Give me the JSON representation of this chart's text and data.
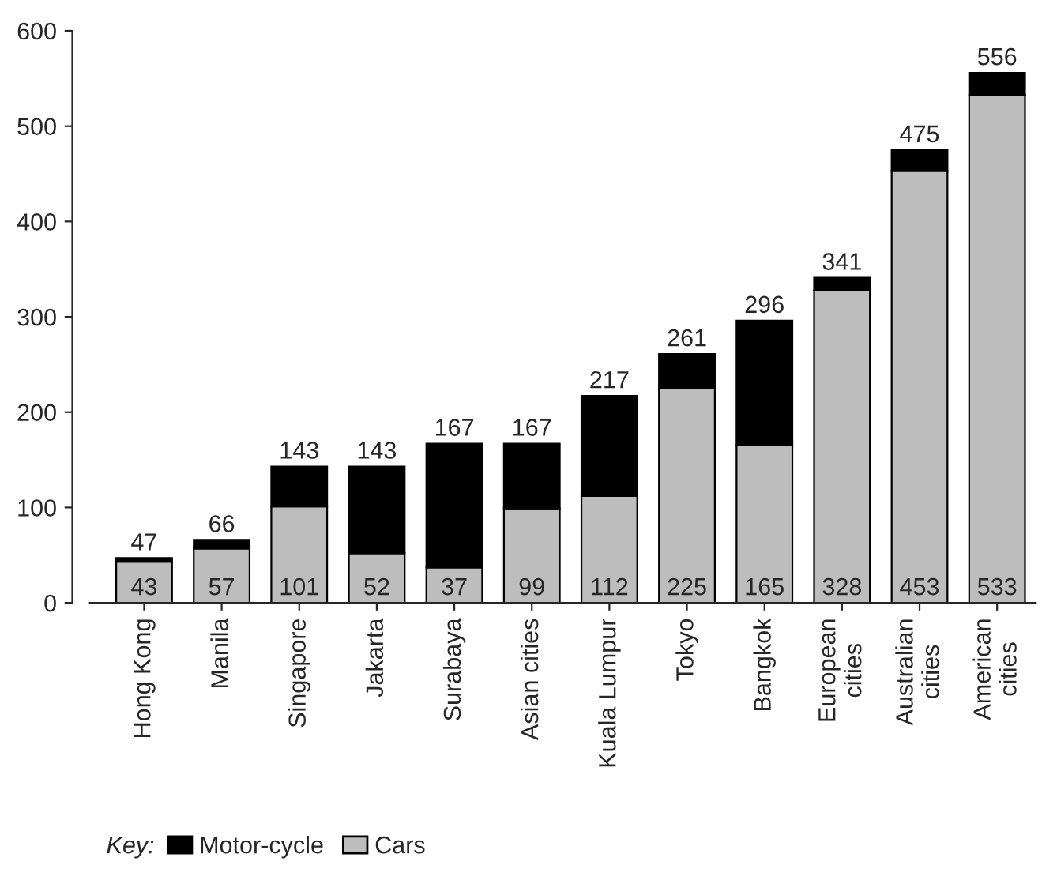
{
  "chart_data": {
    "type": "bar",
    "stacked": true,
    "categories": [
      "Hong Kong",
      "Manila",
      "Singapore",
      "Jakarta",
      "Surabaya",
      "Asian cities",
      "Kuala Lumpur",
      "Tokyo",
      "Bangkok",
      "European\ncities",
      "Australian\ncities",
      "American\ncities"
    ],
    "series": [
      {
        "name": "Cars",
        "color": "#bdbdbd",
        "values": [
          43,
          57,
          101,
          52,
          37,
          99,
          112,
          225,
          165,
          328,
          453,
          533
        ],
        "value_labels": [
          "43",
          "57",
          "101",
          "52",
          "37",
          "99",
          "112",
          "225",
          "165",
          "328",
          "453",
          "533"
        ]
      },
      {
        "name": "Motor-cycle",
        "color": "#000000",
        "values": [
          4,
          9,
          42,
          91,
          130,
          68,
          105,
          36,
          131,
          13,
          22,
          23
        ]
      }
    ],
    "totals": [
      "47",
      "66",
      "143",
      "143",
      "167",
      "167",
      "217",
      "261",
      "296",
      "341",
      "475",
      "556"
    ],
    "ylim": [
      0,
      600
    ],
    "yticks": [
      0,
      100,
      200,
      300,
      400,
      500,
      600
    ],
    "legend": "bottom",
    "legend_title": "Key:",
    "grid": false
  }
}
